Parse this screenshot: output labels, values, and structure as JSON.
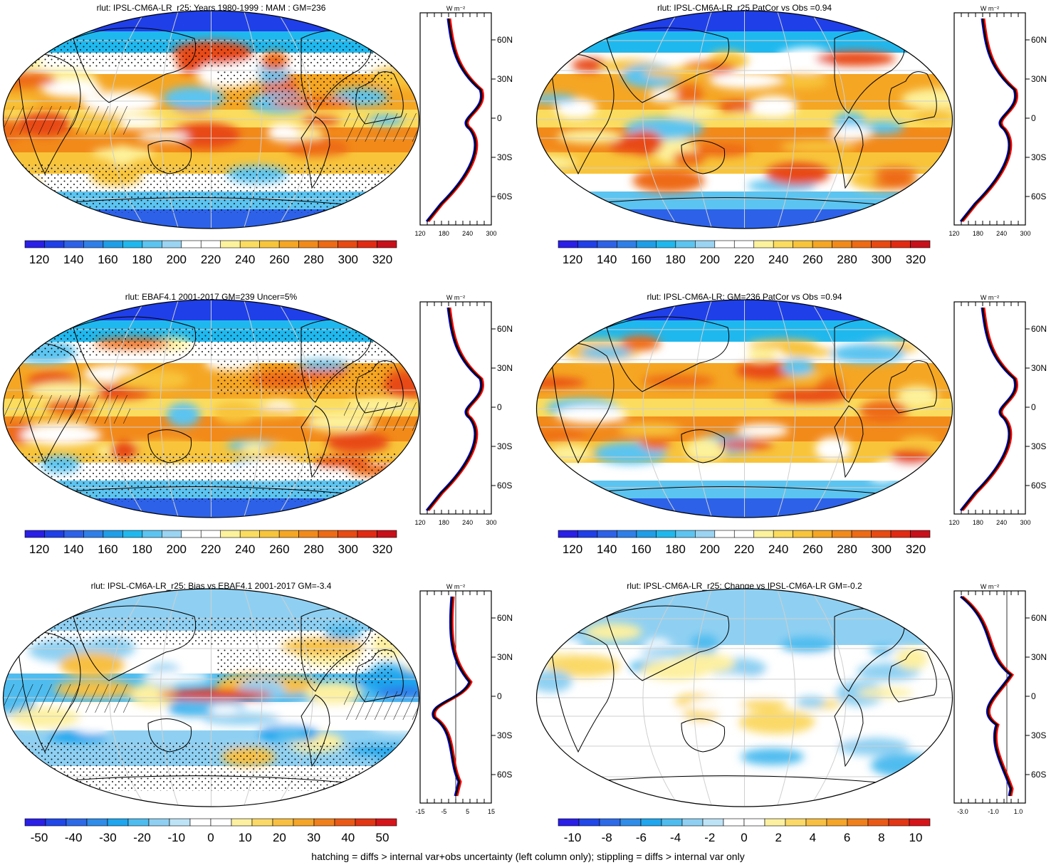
{
  "footer": "hatching = diffs > internal var+obs uncertainty (left column only); stippling = diffs > internal var only",
  "colors": {
    "land_outline": "#000000",
    "model_line": "#0000ff",
    "obs_line": "#ff0000",
    "mean_line": "#000000",
    "grid": "#cfcfcf"
  },
  "panels": [
    {
      "title": "rlut: IPSL-CM6A-LR_r25: Years 1980-1999 : MAM : GM=236",
      "kind": "mean",
      "hatch": true,
      "stipple": true,
      "profile": {
        "unit": "W m⁻²",
        "xlim": [
          120,
          300
        ],
        "xticks": [
          "120",
          "180",
          "240",
          "300"
        ],
        "lat_labels": [
          "60N",
          "30N",
          "0",
          "30S",
          "60S"
        ],
        "zero_line": false
      },
      "colorbar": {
        "labels": [
          "120",
          "140",
          "160",
          "180",
          "200",
          "220",
          "240",
          "260",
          "280",
          "300",
          "320"
        ]
      }
    },
    {
      "title": "rlut: IPSL-CM6A-LR_r25 PatCor vs Obs =0.94",
      "kind": "mean",
      "hatch": false,
      "stipple": false,
      "profile": {
        "unit": "W m⁻²",
        "xlim": [
          120,
          300
        ],
        "xticks": [
          "120",
          "180",
          "240",
          "300"
        ],
        "lat_labels": [
          "60N",
          "30N",
          "0",
          "30S",
          "60S"
        ],
        "zero_line": false
      },
      "colorbar": {
        "labels": [
          "120",
          "140",
          "160",
          "180",
          "200",
          "220",
          "240",
          "260",
          "280",
          "300",
          "320"
        ]
      }
    },
    {
      "title": "rlut: EBAF4.1 2001-2017 GM=239 Uncer=5%",
      "kind": "mean",
      "hatch": true,
      "stipple": true,
      "profile": {
        "unit": "W m⁻²",
        "xlim": [
          120,
          300
        ],
        "xticks": [
          "120",
          "180",
          "240",
          "300"
        ],
        "lat_labels": [
          "60N",
          "30N",
          "0",
          "30S",
          "60S"
        ],
        "zero_line": false
      },
      "colorbar": {
        "labels": [
          "120",
          "140",
          "160",
          "180",
          "200",
          "220",
          "240",
          "260",
          "280",
          "300",
          "320"
        ]
      }
    },
    {
      "title": "rlut: IPSL-CM6A-LR: GM=236 PatCor vs Obs =0.94",
      "kind": "mean",
      "hatch": false,
      "stipple": false,
      "profile": {
        "unit": "W m⁻²",
        "xlim": [
          120,
          300
        ],
        "xticks": [
          "120",
          "180",
          "240",
          "300"
        ],
        "lat_labels": [
          "60N",
          "30N",
          "0",
          "30S",
          "60S"
        ],
        "zero_line": false
      },
      "colorbar": {
        "labels": [
          "120",
          "140",
          "160",
          "180",
          "200",
          "220",
          "240",
          "260",
          "280",
          "300",
          "320"
        ]
      }
    },
    {
      "title": "rlut: IPSL-CM6A-LR_r25: Bias vs EBAF4.1 2001-2017 GM=-3.4",
      "kind": "bias",
      "hatch": true,
      "stipple": true,
      "profile": {
        "unit": "W m⁻²",
        "xlim": [
          -15,
          15
        ],
        "xticks": [
          "-15",
          "-5",
          "5",
          "15"
        ],
        "lat_labels": [
          "60N",
          "30N",
          "0",
          "30S",
          "60S"
        ],
        "zero_line": true
      },
      "colorbar": {
        "labels": [
          "-50",
          "-40",
          "-30",
          "-20",
          "-10",
          "0",
          "10",
          "20",
          "30",
          "40",
          "50"
        ]
      }
    },
    {
      "title": "rlut: IPSL-CM6A-LR_r25: Change vs IPSL-CM6A-LR GM=-0.2",
      "kind": "change",
      "hatch": false,
      "stipple": false,
      "profile": {
        "unit": "W m⁻²",
        "xlim": [
          -3.0,
          1.0
        ],
        "xticks": [
          "-3.0",
          "-1.0",
          "1.0"
        ],
        "lat_labels": [
          "60N",
          "30N",
          "0",
          "30S",
          "60S"
        ],
        "zero_line": true
      },
      "colorbar": {
        "labels": [
          "-10",
          "-8",
          "-6",
          "-4",
          "-2",
          "0",
          "2",
          "4",
          "6",
          "8",
          "10"
        ]
      }
    }
  ]
}
